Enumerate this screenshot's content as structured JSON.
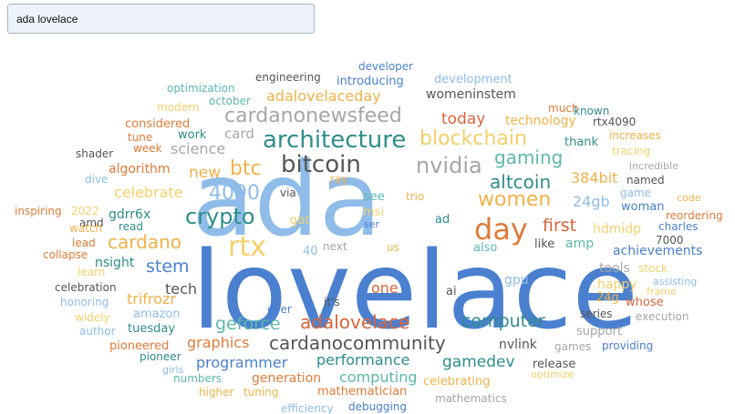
{
  "search": {
    "value": "ada lovelace"
  },
  "words": [
    {
      "t": "ada",
      "c": "#8fbce8"
    },
    {
      "t": "lovelace",
      "c": "#4a80cf"
    },
    {
      "t": "rtx",
      "c": "#f5cf6a"
    },
    {
      "t": "day",
      "c": "#e07b39"
    },
    {
      "t": "bitcoin",
      "c": "#555555"
    },
    {
      "t": "architecture",
      "c": "#2f8c8c"
    },
    {
      "t": "nvidia",
      "c": "#a6a6a6"
    },
    {
      "t": "blockchain",
      "c": "#f5cf6a"
    },
    {
      "t": "cardanonewsfeed",
      "c": "#a6a6a6"
    },
    {
      "t": "adalovelaceday",
      "c": "#f0b24a"
    },
    {
      "t": "womeninstem",
      "c": "#555555"
    },
    {
      "t": "engineering",
      "c": "#555555"
    },
    {
      "t": "introducing",
      "c": "#4a80cf"
    },
    {
      "t": "developer",
      "c": "#4a80cf"
    },
    {
      "t": "development",
      "c": "#8fbce8"
    },
    {
      "t": "optimization",
      "c": "#5cb8ac"
    },
    {
      "t": "modern",
      "c": "#f5cf6a"
    },
    {
      "t": "october",
      "c": "#5cb8ac"
    },
    {
      "t": "considered",
      "c": "#e07b39"
    },
    {
      "t": "tune",
      "c": "#e07b39"
    },
    {
      "t": "week",
      "c": "#e07b39"
    },
    {
      "t": "work",
      "c": "#2f8c8c"
    },
    {
      "t": "card",
      "c": "#a6a6a6"
    },
    {
      "t": "science",
      "c": "#a6a6a6"
    },
    {
      "t": "shader",
      "c": "#555555"
    },
    {
      "t": "today",
      "c": "#d9643a"
    },
    {
      "t": "technology",
      "c": "#f0b24a"
    },
    {
      "t": "much",
      "c": "#e07b39"
    },
    {
      "t": "known",
      "c": "#2f8c8c"
    },
    {
      "t": "rtx4090",
      "c": "#555555"
    },
    {
      "t": "increases",
      "c": "#f0b24a"
    },
    {
      "t": "thank",
      "c": "#2f8c8c"
    },
    {
      "t": "tracing",
      "c": "#f5cf6a"
    },
    {
      "t": "incredible",
      "c": "#a6a6a6"
    },
    {
      "t": "gaming",
      "c": "#5cb8ac"
    },
    {
      "t": "altcoin",
      "c": "#2f8c8c"
    },
    {
      "t": "384bit",
      "c": "#f0b24a"
    },
    {
      "t": "named",
      "c": "#555555"
    },
    {
      "t": "btc",
      "c": "#f0b24a"
    },
    {
      "t": "new",
      "c": "#f0b24a"
    },
    {
      "t": "algorithm",
      "c": "#e07b39"
    },
    {
      "t": "4090",
      "c": "#8fbce8"
    },
    {
      "t": "celebrate",
      "c": "#f5cf6a"
    },
    {
      "t": "women",
      "c": "#f0b24a"
    },
    {
      "t": "24gb",
      "c": "#8fbce8"
    },
    {
      "t": "game",
      "c": "#8fbce8"
    },
    {
      "t": "woman",
      "c": "#4a80cf"
    },
    {
      "t": "code",
      "c": "#f0b24a"
    },
    {
      "t": "dive",
      "c": "#8fbce8"
    },
    {
      "t": "amd",
      "c": "#555555"
    },
    {
      "t": "inspiring",
      "c": "#e07b39"
    },
    {
      "t": "2022",
      "c": "#f5cf6a"
    },
    {
      "t": "crypto",
      "c": "#2f8c8c"
    },
    {
      "t": "gdrr6x",
      "c": "#2f8c8c"
    },
    {
      "t": "via",
      "c": "#555555"
    },
    {
      "t": "ray",
      "c": "#f0b24a"
    },
    {
      "t": "see",
      "c": "#5cb8ac"
    },
    {
      "t": "trio",
      "c": "#f0b24a"
    },
    {
      "t": "msi",
      "c": "#f5cf6a"
    },
    {
      "t": "got",
      "c": "#f5cf6a"
    },
    {
      "t": "ser",
      "c": "#4a80cf"
    },
    {
      "t": "ad",
      "c": "#2f8c8c"
    },
    {
      "t": "first",
      "c": "#d9643a"
    },
    {
      "t": "hdmidp",
      "c": "#f5cf6a"
    },
    {
      "t": "charles",
      "c": "#4a80cf"
    },
    {
      "t": "reordering",
      "c": "#e07b39"
    },
    {
      "t": "watch",
      "c": "#f0b24a"
    },
    {
      "t": "read",
      "c": "#2f8c8c"
    },
    {
      "t": "cardano",
      "c": "#f0b24a"
    },
    {
      "t": "7000",
      "c": "#555555"
    },
    {
      "t": "lead",
      "c": "#e07b39"
    },
    {
      "t": "collapse",
      "c": "#e07b39"
    },
    {
      "t": "40",
      "c": "#8fbce8"
    },
    {
      "t": "next",
      "c": "#a6a6a6"
    },
    {
      "t": "us",
      "c": "#f0b24a"
    },
    {
      "t": "also",
      "c": "#5cb8ac"
    },
    {
      "t": "like",
      "c": "#555555"
    },
    {
      "t": "amp",
      "c": "#5cb8ac"
    },
    {
      "t": "achievements",
      "c": "#4a80cf"
    },
    {
      "t": "nsight",
      "c": "#2f8c8c"
    },
    {
      "t": "stem",
      "c": "#4a80cf"
    },
    {
      "t": "learn",
      "c": "#f5cf6a"
    },
    {
      "t": "tools",
      "c": "#a6a6a6"
    },
    {
      "t": "stock",
      "c": "#f5cf6a"
    },
    {
      "t": "assisting",
      "c": "#8fbce8"
    },
    {
      "t": "celebration",
      "c": "#555555"
    },
    {
      "t": "tech",
      "c": "#555555"
    },
    {
      "t": "gpu",
      "c": "#8fbce8"
    },
    {
      "t": "happy",
      "c": "#f5cf6a"
    },
    {
      "t": "frame",
      "c": "#f5cf6a"
    },
    {
      "t": "honoring",
      "c": "#8fbce8"
    },
    {
      "t": "trifrozr",
      "c": "#f0b24a"
    },
    {
      "t": "one",
      "c": "#d9643a"
    },
    {
      "t": "ai",
      "c": "#555555"
    },
    {
      "t": "24g",
      "c": "#f0b24a"
    },
    {
      "t": "whose",
      "c": "#d9643a"
    },
    {
      "t": "amazon",
      "c": "#8fbce8"
    },
    {
      "t": "it's",
      "c": "#555555"
    },
    {
      "t": "widely",
      "c": "#f5cf6a"
    },
    {
      "t": "ever",
      "c": "#4a80cf"
    },
    {
      "t": "series",
      "c": "#555555"
    },
    {
      "t": "execution",
      "c": "#a6a6a6"
    },
    {
      "t": "geforce",
      "c": "#5cb8ac"
    },
    {
      "t": "adalovelace",
      "c": "#d9643a"
    },
    {
      "t": "computer",
      "c": "#2f8c8c"
    },
    {
      "t": "author",
      "c": "#8fbce8"
    },
    {
      "t": "tuesday",
      "c": "#2f8c8c"
    },
    {
      "t": "support",
      "c": "#a6a6a6"
    },
    {
      "t": "pioneered",
      "c": "#e07b39"
    },
    {
      "t": "cardanocommunity",
      "c": "#555555"
    },
    {
      "t": "nvlink",
      "c": "#555555"
    },
    {
      "t": "graphics",
      "c": "#e07b39"
    },
    {
      "t": "games",
      "c": "#a6a6a6"
    },
    {
      "t": "providing",
      "c": "#4a80cf"
    },
    {
      "t": "pioneer",
      "c": "#2f8c8c"
    },
    {
      "t": "programmer",
      "c": "#4a80cf"
    },
    {
      "t": "performance",
      "c": "#2f8c8c"
    },
    {
      "t": "girls",
      "c": "#8fbce8"
    },
    {
      "t": "gamedev",
      "c": "#2f8c8c"
    },
    {
      "t": "release",
      "c": "#555555"
    },
    {
      "t": "numbers",
      "c": "#5cb8ac"
    },
    {
      "t": "computing",
      "c": "#5cb8ac"
    },
    {
      "t": "optimize",
      "c": "#f5cf6a"
    },
    {
      "t": "generation",
      "c": "#e07b39"
    },
    {
      "t": "celebrating",
      "c": "#f0b24a"
    },
    {
      "t": "higher",
      "c": "#f0b24a"
    },
    {
      "t": "tuning",
      "c": "#f0b24a"
    },
    {
      "t": "mathematician",
      "c": "#e07b39"
    },
    {
      "t": "mathematics",
      "c": "#a6a6a6"
    },
    {
      "t": "efficiency",
      "c": "#8fbce8"
    },
    {
      "t": "debugging",
      "c": "#4a80cf"
    }
  ]
}
